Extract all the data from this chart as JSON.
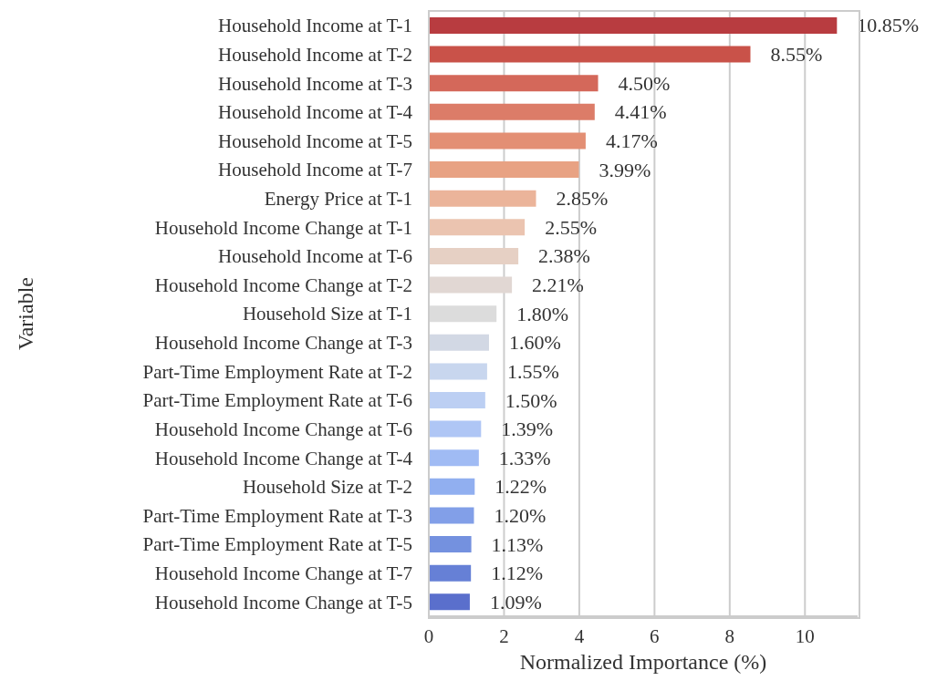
{
  "chart_data": {
    "type": "bar",
    "orientation": "horizontal",
    "xlabel": "Normalized Importance (%)",
    "ylabel": "Variable",
    "categories": [
      "Household Income at T-1",
      "Household Income at T-2",
      "Household Income at T-3",
      "Household Income at T-4",
      "Household Income at T-5",
      "Household Income at T-7",
      "Energy Price at T-1",
      "Household Income Change at T-1",
      "Household Income at T-6",
      "Household Income Change at T-2",
      "Household Size at T-1",
      "Household Income Change at T-3",
      "Part-Time Employment Rate at T-2",
      "Part-Time Employment Rate at T-6",
      "Household Income Change at T-6",
      "Household Income Change at T-4",
      "Household Size at T-2",
      "Part-Time Employment Rate at T-3",
      "Part-Time Employment Rate at T-5",
      "Household Income Change at T-7",
      "Household Income Change at T-5"
    ],
    "values": [
      10.85,
      8.55,
      4.5,
      4.41,
      4.17,
      3.99,
      2.85,
      2.55,
      2.38,
      2.21,
      1.8,
      1.6,
      1.55,
      1.5,
      1.39,
      1.33,
      1.22,
      1.2,
      1.13,
      1.12,
      1.09
    ],
    "value_labels": [
      "10.85%",
      "8.55%",
      "4.50%",
      "4.41%",
      "4.17%",
      "3.99%",
      "2.85%",
      "2.55%",
      "2.38%",
      "2.21%",
      "1.80%",
      "1.60%",
      "1.55%",
      "1.50%",
      "1.39%",
      "1.33%",
      "1.22%",
      "1.20%",
      "1.13%",
      "1.12%",
      "1.09%"
    ],
    "colors": [
      "#b83c40",
      "#c95249",
      "#d4685a",
      "#dc7c68",
      "#e38f74",
      "#e8a283",
      "#ebb49a",
      "#ebc4b0",
      "#e6d0c4",
      "#e1d7d3",
      "#dcdcdc",
      "#d2d8e4",
      "#c8d6ee",
      "#bccff3",
      "#afc6f5",
      "#a0bbf4",
      "#91aff0",
      "#829fe8",
      "#7491df",
      "#6680d6",
      "#5a6fcc"
    ],
    "xlim": [
      0,
      11.4
    ],
    "xticks": [
      0,
      2,
      4,
      6,
      8,
      10
    ],
    "grid": "x"
  }
}
